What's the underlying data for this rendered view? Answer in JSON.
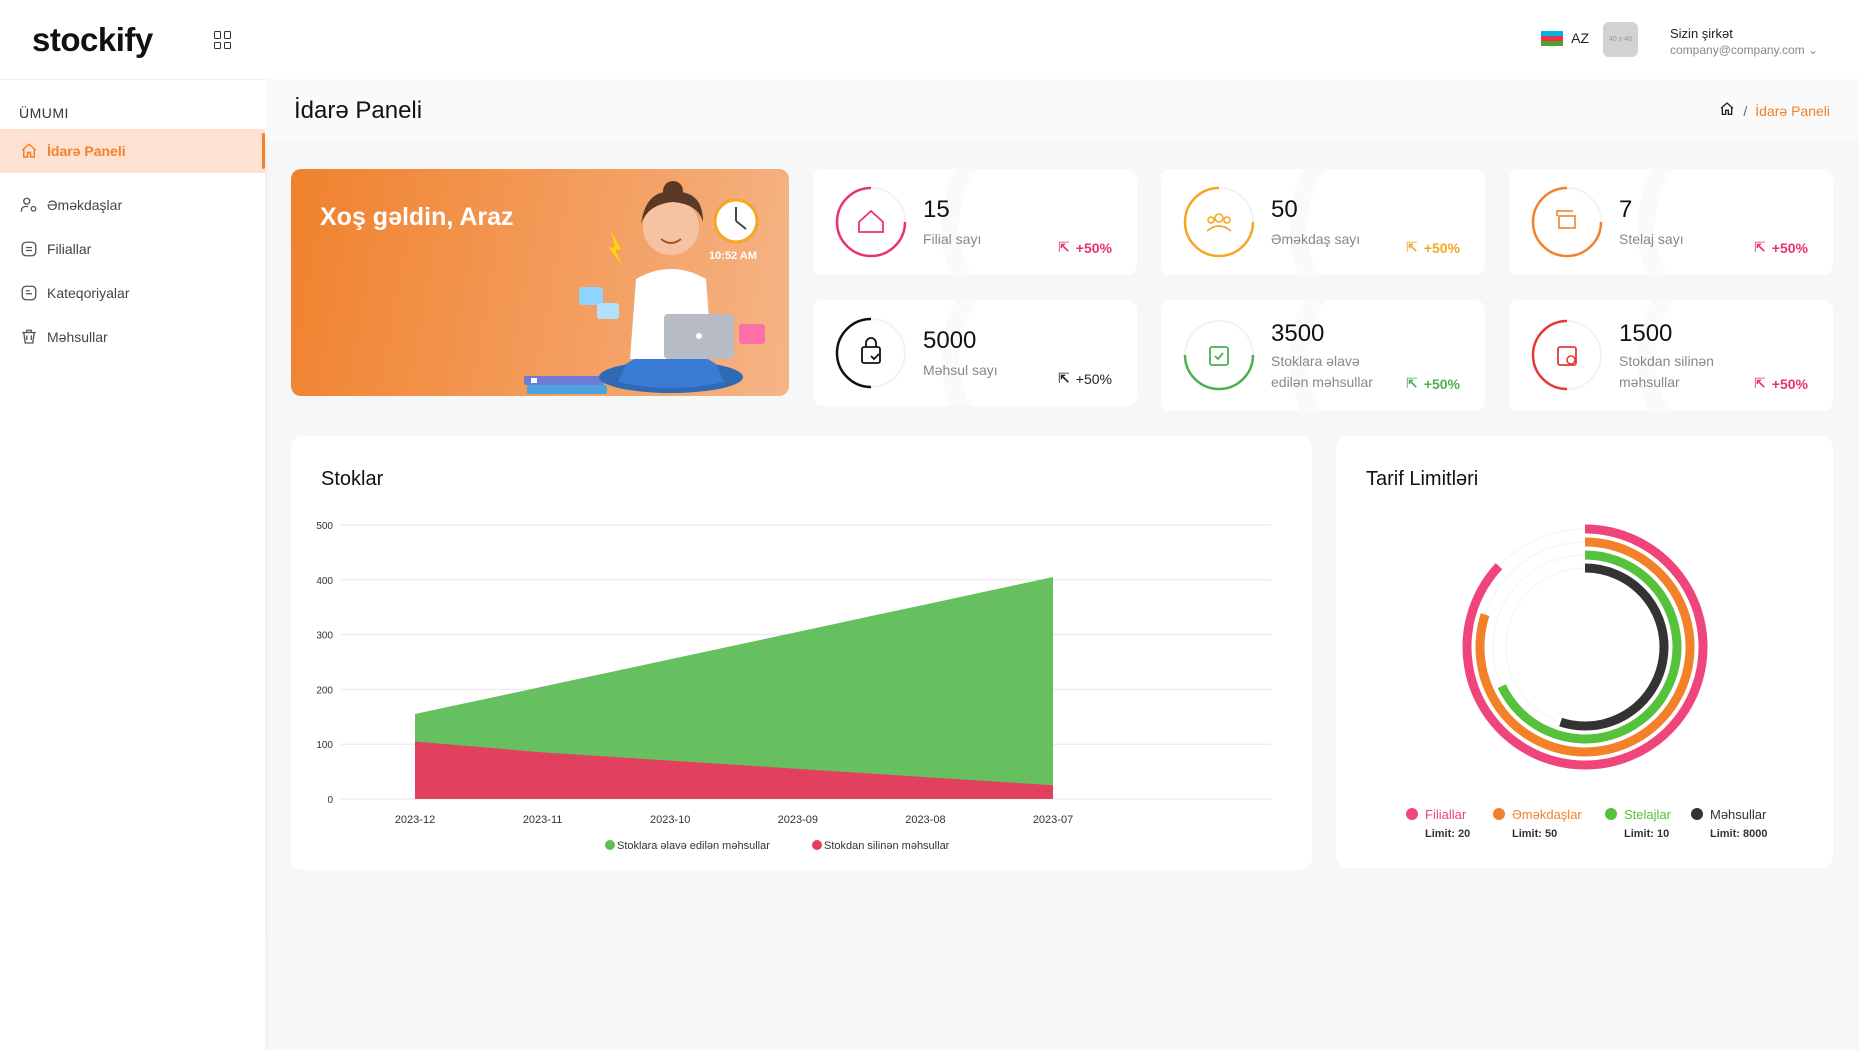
{
  "brand": {
    "logo_text": "stockify"
  },
  "sidebar": {
    "section": "ÜMUMI",
    "items": [
      {
        "label": "İdarə Paneli",
        "icon": "home-icon",
        "active": true
      },
      {
        "label": "Əməkdaşlar",
        "icon": "users-icon"
      },
      {
        "label": "Filiallar",
        "icon": "branch-icon"
      },
      {
        "label": "Kateqoriyalar",
        "icon": "category-icon"
      },
      {
        "label": "Məhsullar",
        "icon": "basket-icon"
      }
    ]
  },
  "header": {
    "lang": "AZ",
    "avatar_placeholder": "40 x 40",
    "company_name": "Sizin şirkət",
    "company_email": "company@company.com"
  },
  "page": {
    "title": "İdarə Paneli",
    "breadcrumb_current": "İdarə Paneli"
  },
  "welcome": {
    "title": "Xoş gəldin, Araz",
    "clock_time": "10:52 AM"
  },
  "stats": [
    {
      "value": "15",
      "label": "Filial sayı",
      "trend": "+50%",
      "color": "#e8336b"
    },
    {
      "value": "50",
      "label": "Əməkdaş sayı",
      "trend": "+50%",
      "color": "#f5a623"
    },
    {
      "value": "7",
      "label": "Stelaj sayı",
      "trend": "+50%",
      "color": "#f2812a"
    },
    {
      "value": "5000",
      "label": "Məhsul sayı",
      "trend": "+50%",
      "color": "#111111"
    },
    {
      "value": "3500",
      "label_line1": "Stoklara əlavə",
      "label_line2": "edilən məhsullar",
      "trend": "+50%",
      "color": "#4caf50"
    },
    {
      "value": "1500",
      "label_line1": "Stokdan silinən",
      "label_line2": "məhsullar",
      "trend": "+50%",
      "color": "#e53935"
    }
  ],
  "stocks_panel": {
    "title": "Stoklar"
  },
  "tariff_panel": {
    "title": "Tarif Limitləri"
  },
  "chart_data": [
    {
      "type": "area",
      "title": "Stoklar",
      "categories": [
        "2023-12",
        "2023-11",
        "2023-10",
        "2023-09",
        "2023-08",
        "2023-07"
      ],
      "yticks": [
        0,
        100,
        200,
        300,
        400,
        500
      ],
      "ylim": [
        0,
        500
      ],
      "series": [
        {
          "name": "Stoklara əlavə edilən məhsullar",
          "values": [
            155,
            205,
            255,
            305,
            355,
            405
          ],
          "color": "#5fbd56"
        },
        {
          "name": "Stokdan silinən məhsullar",
          "values": [
            105,
            85,
            70,
            55,
            40,
            25
          ],
          "color": "#e83a5e"
        }
      ],
      "legend": "bottom"
    },
    {
      "type": "radial-bar",
      "title": "Tarif Limitləri",
      "series": [
        {
          "name": "Filiallar",
          "limit_label": "Limit: 20",
          "percent": 87,
          "color": "#f0457a"
        },
        {
          "name": "Əməkdaşlar",
          "limit_label": "Limit: 50",
          "percent": 80,
          "color": "#f2812a"
        },
        {
          "name": "Stelajlar",
          "limit_label": "Limit: 10",
          "percent": 68,
          "color": "#56c13b"
        },
        {
          "name": "Məhsullar",
          "limit_label": "Limit: 8000",
          "percent": 55,
          "color": "#333333"
        }
      ],
      "legend": "bottom"
    }
  ]
}
